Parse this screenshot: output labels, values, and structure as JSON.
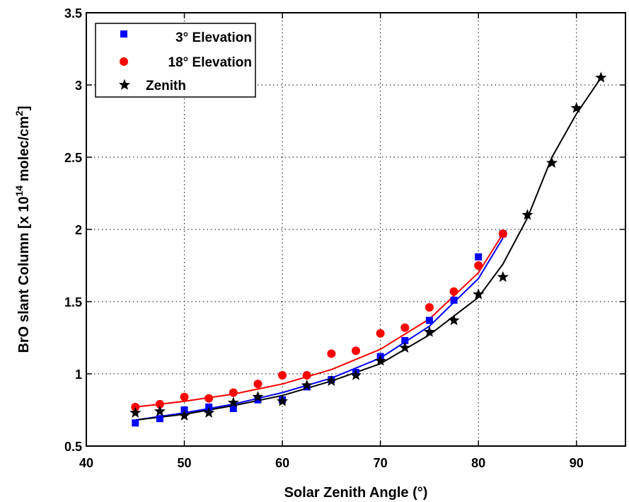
{
  "chart_data": {
    "type": "scatter",
    "title": "",
    "xlabel": "Solar Zenith Angle (°)",
    "ylabel_parts": {
      "main": "BrO slant Column [x 10",
      "exp1": "14",
      "mid": " molec/cm",
      "exp2": "2",
      "end": "]"
    },
    "xlim": [
      40,
      95
    ],
    "ylim": [
      0.5,
      3.5
    ],
    "xticks": [
      40,
      50,
      60,
      70,
      80,
      90
    ],
    "yticks": [
      0.5,
      1,
      1.5,
      2,
      2.5,
      3,
      3.5
    ],
    "ytick_labels": [
      "0.5",
      "1",
      "1.5",
      "2",
      "2.5",
      "3",
      "3.5"
    ],
    "grid": true,
    "legend_position": "top-left",
    "series": [
      {
        "name": "3° Elevation",
        "marker": "square",
        "color": "#0000ff",
        "points": [
          [
            45,
            0.66
          ],
          [
            47.5,
            0.69
          ],
          [
            50,
            0.75
          ],
          [
            52.5,
            0.77
          ],
          [
            55,
            0.76
          ],
          [
            57.5,
            0.82
          ],
          [
            60,
            0.82
          ],
          [
            62.5,
            0.91
          ],
          [
            65,
            0.96
          ],
          [
            67.5,
            1.01
          ],
          [
            70,
            1.12
          ],
          [
            72.5,
            1.23
          ],
          [
            75,
            1.37
          ],
          [
            77.5,
            1.51
          ],
          [
            80,
            1.81
          ],
          [
            82.5,
            1.97
          ]
        ],
        "fit": [
          [
            45,
            0.68
          ],
          [
            50,
            0.73
          ],
          [
            55,
            0.79
          ],
          [
            60,
            0.87
          ],
          [
            65,
            0.97
          ],
          [
            70,
            1.11
          ],
          [
            75,
            1.33
          ],
          [
            80,
            1.66
          ],
          [
            82.5,
            1.94
          ]
        ]
      },
      {
        "name": "18° Elevation",
        "marker": "circle",
        "color": "#ff0000",
        "points": [
          [
            45,
            0.77
          ],
          [
            47.5,
            0.79
          ],
          [
            50,
            0.84
          ],
          [
            52.5,
            0.83
          ],
          [
            55,
            0.87
          ],
          [
            57.5,
            0.93
          ],
          [
            60,
            0.99
          ],
          [
            62.5,
            0.99
          ],
          [
            65,
            1.14
          ],
          [
            67.5,
            1.16
          ],
          [
            70,
            1.28
          ],
          [
            72.5,
            1.32
          ],
          [
            75,
            1.46
          ],
          [
            77.5,
            1.57
          ],
          [
            80,
            1.75
          ],
          [
            82.5,
            1.97
          ]
        ],
        "fit": [
          [
            45,
            0.77
          ],
          [
            50,
            0.81
          ],
          [
            55,
            0.86
          ],
          [
            60,
            0.93
          ],
          [
            65,
            1.03
          ],
          [
            70,
            1.17
          ],
          [
            75,
            1.38
          ],
          [
            80,
            1.7
          ],
          [
            82.5,
            1.97
          ]
        ]
      },
      {
        "name": "Zenith",
        "marker": "star",
        "color": "#000000",
        "points": [
          [
            45,
            0.73
          ],
          [
            47.5,
            0.74
          ],
          [
            50,
            0.71
          ],
          [
            52.5,
            0.73
          ],
          [
            55,
            0.8
          ],
          [
            57.5,
            0.84
          ],
          [
            60,
            0.81
          ],
          [
            62.5,
            0.92
          ],
          [
            65,
            0.95
          ],
          [
            67.5,
            0.99
          ],
          [
            70,
            1.09
          ],
          [
            72.5,
            1.18
          ],
          [
            75,
            1.29
          ],
          [
            77.5,
            1.37
          ],
          [
            80,
            1.55
          ],
          [
            82.5,
            1.67
          ],
          [
            85,
            2.1
          ],
          [
            87.5,
            2.46
          ],
          [
            90,
            2.84
          ],
          [
            92.5,
            3.05
          ]
        ],
        "fit": [
          [
            45,
            0.68
          ],
          [
            50,
            0.72
          ],
          [
            55,
            0.78
          ],
          [
            60,
            0.85
          ],
          [
            65,
            0.95
          ],
          [
            70,
            1.07
          ],
          [
            75,
            1.27
          ],
          [
            80,
            1.53
          ],
          [
            82.5,
            1.76
          ],
          [
            85,
            2.08
          ],
          [
            87.5,
            2.5
          ],
          [
            90,
            2.8
          ],
          [
            92.5,
            3.05
          ]
        ]
      }
    ]
  }
}
